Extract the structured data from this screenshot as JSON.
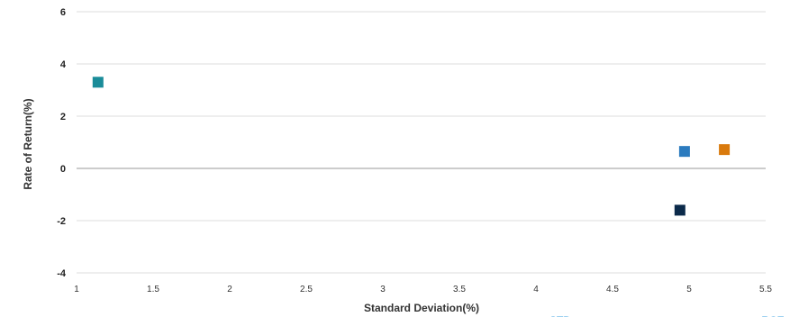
{
  "chart_data": {
    "type": "scatter",
    "title": "",
    "xlabel": "Standard Deviation(%)",
    "ylabel": "Rate of Return(%)",
    "xlim": [
      1,
      5.5
    ],
    "ylim": [
      -4,
      6
    ],
    "x_ticks": [
      "1",
      "1.5",
      "2",
      "2.5",
      "3",
      "3.5",
      "4",
      "4.5",
      "5",
      "5.5"
    ],
    "y_ticks": [
      "6",
      "4",
      "2",
      "0",
      "-2",
      "-4"
    ],
    "grid": true,
    "legend": "none",
    "points": [
      {
        "x": 1.14,
        "y": 3.3,
        "color": "#1a8c99"
      },
      {
        "x": 4.97,
        "y": 0.65,
        "color": "#2b7bbf"
      },
      {
        "x": 5.23,
        "y": 0.72,
        "color": "#d97a0d"
      },
      {
        "x": 4.94,
        "y": -1.6,
        "color": "#0b2a4a"
      }
    ],
    "cutoff_labels": [
      {
        "text": "STD",
        "color": "#3aa0e0"
      },
      {
        "text": "RCE",
        "color": "#3aa0e0"
      }
    ]
  }
}
